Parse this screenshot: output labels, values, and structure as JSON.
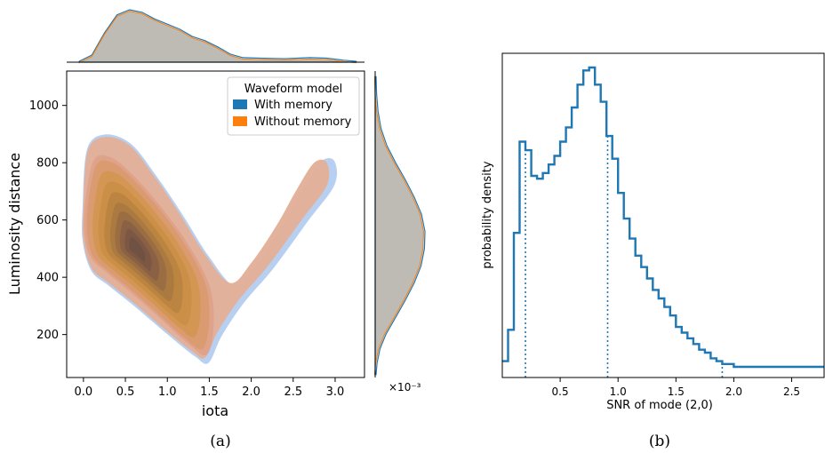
{
  "chart_data": [
    {
      "type": "kde2d-joint",
      "xlabel": "iota",
      "ylabel": "Luminosity distance",
      "xlim": [
        -0.2,
        3.35
      ],
      "ylim": [
        50,
        1120
      ],
      "x_ticks": [
        "0.0",
        "0.5",
        "1.0",
        "1.5",
        "2.0",
        "2.5",
        "3.0"
      ],
      "x_tick_values": [
        0,
        0.5,
        1.0,
        1.5,
        2.0,
        2.5,
        3.0
      ],
      "y_ticks": [
        "200",
        "400",
        "600",
        "800",
        "1000"
      ],
      "y_tick_values": [
        200,
        400,
        600,
        800,
        1000
      ],
      "marginal_offset_label": "×10⁻³",
      "legend": {
        "title": "Waveform model",
        "entries": [
          {
            "label": "With memory",
            "color": "#1f77b4"
          },
          {
            "label": "Without memory",
            "color": "#ff7f0e"
          }
        ],
        "placement": "upper right"
      },
      "series": [
        {
          "name": "With memory",
          "color": "#1f77b4"
        },
        {
          "name": "Without memory",
          "color": "#ff7f0e"
        }
      ],
      "outer_contour": [
        [
          0.0,
          650
        ],
        [
          0.05,
          840
        ],
        [
          0.25,
          890
        ],
        [
          0.55,
          860
        ],
        [
          0.85,
          750
        ],
        [
          1.15,
          620
        ],
        [
          1.45,
          480
        ],
        [
          1.75,
          380
        ],
        [
          2.0,
          450
        ],
        [
          2.3,
          580
        ],
        [
          2.55,
          710
        ],
        [
          2.75,
          800
        ],
        [
          2.9,
          800
        ],
        [
          2.9,
          720
        ],
        [
          2.6,
          600
        ],
        [
          2.2,
          440
        ],
        [
          1.85,
          320
        ],
        [
          1.6,
          210
        ],
        [
          1.45,
          120
        ],
        [
          1.3,
          140
        ],
        [
          1.0,
          210
        ],
        [
          0.6,
          310
        ],
        [
          0.3,
          380
        ],
        [
          0.1,
          430
        ],
        [
          0.0,
          530
        ]
      ],
      "mode": [
        0.55,
        540
      ],
      "x_marginal_density": [
        [
          -0.05,
          0.0
        ],
        [
          0.1,
          0.12
        ],
        [
          0.25,
          0.55
        ],
        [
          0.4,
          0.9
        ],
        [
          0.55,
          1.0
        ],
        [
          0.7,
          0.95
        ],
        [
          0.85,
          0.82
        ],
        [
          1.0,
          0.72
        ],
        [
          1.15,
          0.62
        ],
        [
          1.3,
          0.48
        ],
        [
          1.45,
          0.4
        ],
        [
          1.6,
          0.28
        ],
        [
          1.75,
          0.14
        ],
        [
          1.9,
          0.07
        ],
        [
          2.1,
          0.06
        ],
        [
          2.4,
          0.05
        ],
        [
          2.7,
          0.07
        ],
        [
          2.9,
          0.06
        ],
        [
          3.1,
          0.02
        ],
        [
          3.25,
          0.0
        ]
      ],
      "y_marginal_density": [
        [
          60,
          0.0
        ],
        [
          100,
          0.02
        ],
        [
          150,
          0.08
        ],
        [
          200,
          0.2
        ],
        [
          260,
          0.4
        ],
        [
          320,
          0.6
        ],
        [
          380,
          0.78
        ],
        [
          440,
          0.92
        ],
        [
          500,
          0.99
        ],
        [
          560,
          1.0
        ],
        [
          620,
          0.93
        ],
        [
          680,
          0.78
        ],
        [
          740,
          0.6
        ],
        [
          800,
          0.4
        ],
        [
          860,
          0.22
        ],
        [
          920,
          0.1
        ],
        [
          980,
          0.04
        ],
        [
          1040,
          0.01
        ],
        [
          1100,
          0.0
        ]
      ]
    },
    {
      "type": "histogram",
      "xlabel": "SNR of mode (2,0)",
      "ylabel": "probability density",
      "xlim": [
        0.0,
        2.78
      ],
      "ylim": [
        0,
        1.1
      ],
      "x_ticks": [
        "0.5",
        "1.0",
        "1.5",
        "2.0",
        "2.5"
      ],
      "x_tick_values": [
        0.5,
        1.0,
        1.5,
        2.0,
        2.5
      ],
      "color": "#1f77b4",
      "bin_width": 0.05,
      "bin_start": 0.0,
      "values": [
        0.02,
        0.13,
        0.47,
        0.79,
        0.76,
        0.67,
        0.66,
        0.68,
        0.71,
        0.74,
        0.79,
        0.84,
        0.91,
        0.99,
        1.04,
        1.05,
        0.99,
        0.93,
        0.81,
        0.73,
        0.61,
        0.52,
        0.45,
        0.39,
        0.35,
        0.31,
        0.27,
        0.24,
        0.21,
        0.18,
        0.14,
        0.12,
        0.1,
        0.08,
        0.06,
        0.05,
        0.03,
        0.02,
        0.01,
        0.01,
        0.0,
        0.0,
        0.0,
        0.0,
        0.0,
        0.0,
        0.0,
        0.0,
        0.0,
        0.0,
        0.0,
        0.0,
        0.0,
        0.0,
        0.0,
        0.0
      ],
      "quantile_lines": [
        0.2,
        0.91,
        1.9
      ]
    }
  ],
  "captions": {
    "left": "(a)",
    "right": "(b)"
  }
}
